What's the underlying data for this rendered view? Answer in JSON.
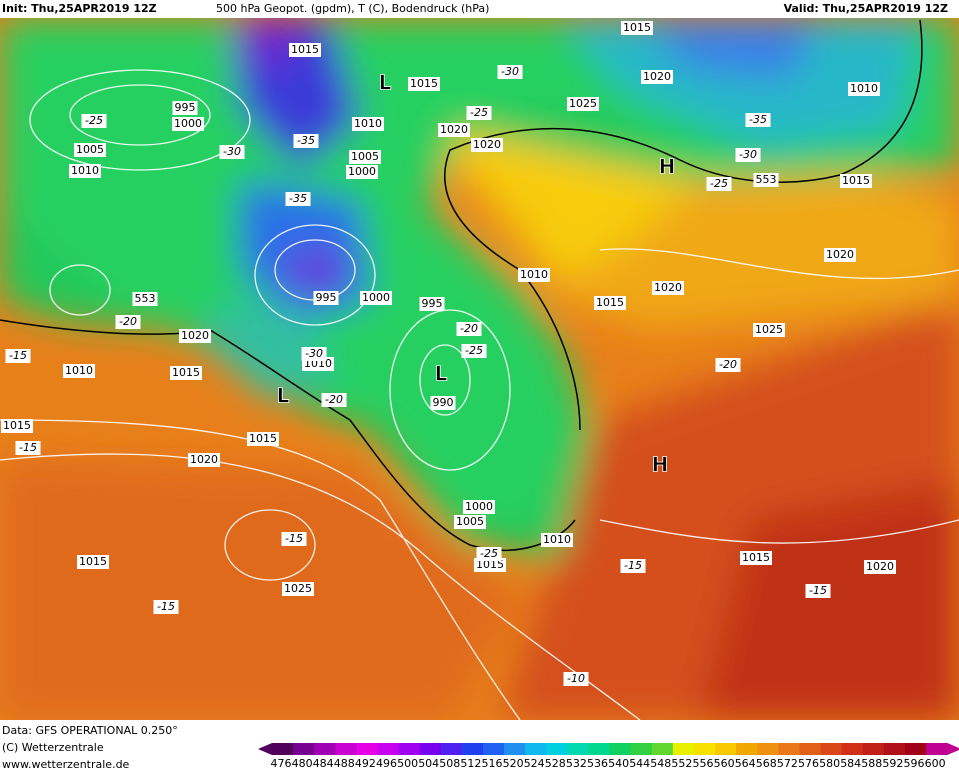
{
  "header": {
    "init": "Init: Thu,25APR2019 12Z",
    "title": "500 hPa Geopot. (gpdm), T (C), Bodendruck (hPa)",
    "valid": "Valid: Thu,25APR2019 12Z"
  },
  "footer": {
    "data": "Data: GFS OPERATIONAL 0.250°",
    "copyright": "(C) Wetterzentrale",
    "url": "www.wetterzentrale.de"
  },
  "colorbar": {
    "labels": [
      "476",
      "480",
      "484",
      "488",
      "492",
      "496",
      "500",
      "504",
      "508",
      "512",
      "516",
      "520",
      "524",
      "528",
      "532",
      "536",
      "540",
      "544",
      "548",
      "552",
      "556",
      "560",
      "564",
      "568",
      "572",
      "576",
      "580",
      "584",
      "588",
      "592",
      "596",
      "600"
    ]
  },
  "map": {
    "pressure_labels": [
      "1015",
      "995",
      "1000",
      "1005",
      "1010",
      "1015",
      "1010",
      "1005",
      "1000",
      "1020",
      "1020",
      "1025",
      "1020",
      "1015",
      "1010",
      "1015",
      "1020",
      "995",
      "1000",
      "995",
      "1010",
      "1015",
      "1020",
      "1025",
      "990",
      "1020",
      "1010",
      "1015",
      "1010",
      "1015",
      "1015",
      "1020",
      "1000",
      "1005",
      "1010",
      "1015",
      "1015",
      "1025",
      "1015",
      "1020",
      "553",
      "553"
    ],
    "temperature_labels": [
      "-30",
      "-25",
      "-30",
      "-35",
      "-25",
      "-35",
      "-30",
      "-25",
      "-35",
      "-20",
      "-15",
      "-20",
      "-25",
      "-30",
      "-20",
      "-15",
      "-20",
      "-15",
      "-25",
      "-15",
      "-15",
      "-15",
      "-10"
    ],
    "centers": [
      "L",
      "L",
      "L",
      "H",
      "H"
    ]
  }
}
